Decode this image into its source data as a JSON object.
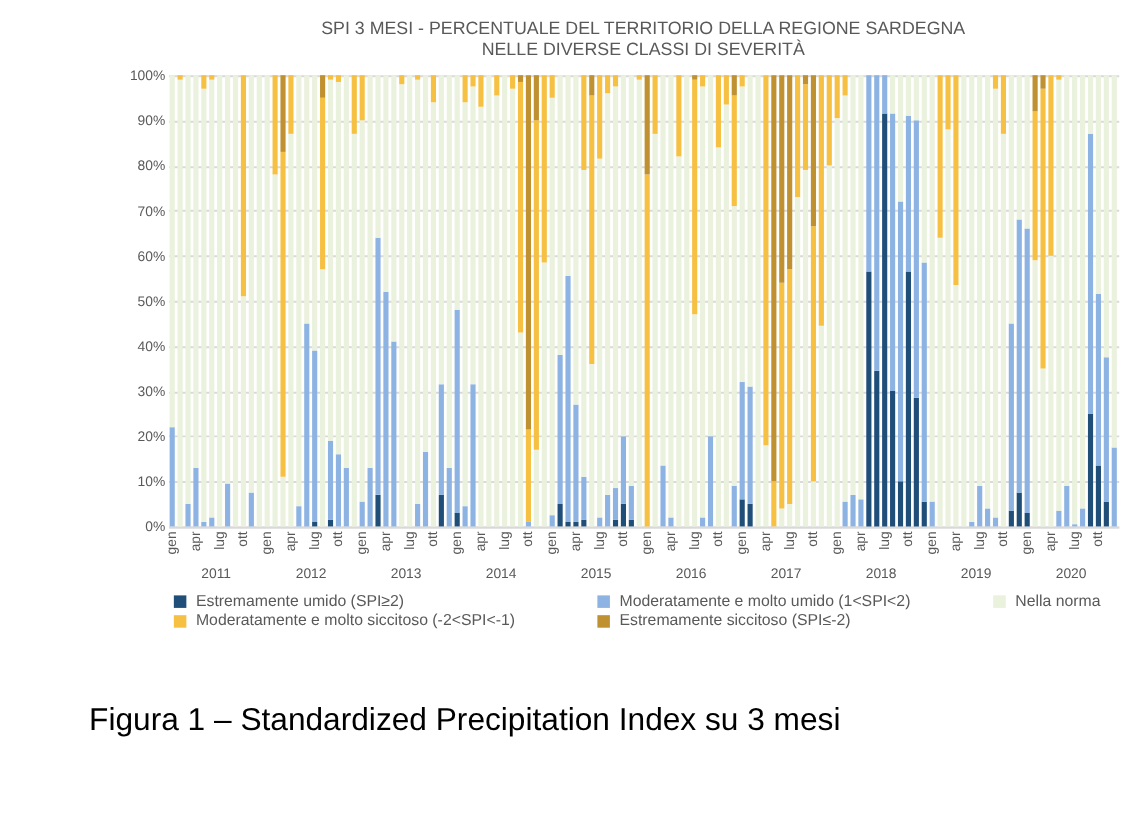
{
  "chart_data": {
    "type": "bar",
    "stacked": true,
    "title": "SPI 3 MESI - PERCENTUALE DEL TERRITORIO DELLA REGIONE SARDEGNA NELLE DIVERSE CLASSI DI SEVERITÀ",
    "categories": [
      "gen",
      null,
      null,
      "apr",
      null,
      null,
      "lug",
      null,
      null,
      "ott",
      null,
      null,
      "gen",
      null,
      null,
      "apr",
      null,
      null,
      "lug",
      null,
      null,
      "ott",
      null,
      null,
      "gen",
      null,
      null,
      "apr",
      null,
      null,
      "lug",
      null,
      null,
      "ott",
      null,
      null,
      "gen",
      null,
      null,
      "apr",
      null,
      null,
      "lug",
      null,
      null,
      "ott",
      null,
      null,
      "gen",
      null,
      null,
      "apr",
      null,
      null,
      "lug",
      null,
      null,
      "ott",
      null,
      null,
      "gen",
      null,
      null,
      "apr",
      null,
      null,
      "lug",
      null,
      null,
      "ott",
      null,
      null,
      "gen",
      null,
      null,
      "apr",
      null,
      null,
      "lug",
      null,
      null,
      "ott",
      null,
      null,
      "gen",
      null,
      null,
      "apr",
      null,
      null,
      "lug",
      null,
      null,
      "ott",
      null,
      null,
      "gen",
      null,
      null,
      "apr",
      null,
      null,
      "lug",
      null,
      null,
      "ott",
      null,
      null,
      "gen",
      null,
      null,
      "apr",
      null,
      null,
      "lug",
      null,
      null,
      "ott",
      null,
      null
    ],
    "series": [
      {
        "name": "Estremamente  umido (SPI≥2)",
        "color": "#1f4e79",
        "values": [
          0,
          0,
          0,
          0,
          0,
          0,
          0,
          0,
          0,
          0,
          0,
          0,
          0,
          0,
          0,
          0,
          0,
          0,
          1,
          0,
          1.5,
          0,
          0,
          0,
          0,
          0,
          7,
          0,
          0,
          0,
          0,
          0,
          0,
          0,
          7,
          0,
          3,
          0,
          0,
          0,
          0,
          0,
          0,
          0,
          0,
          0,
          0,
          0,
          0,
          5,
          1,
          1,
          1.5,
          0,
          0,
          0,
          1.5,
          5,
          1.5,
          0,
          0,
          0,
          0,
          0,
          0,
          0,
          0,
          0,
          0,
          0,
          0,
          0,
          6,
          5,
          0,
          0,
          0,
          0,
          0,
          0,
          0,
          0,
          0,
          0,
          0,
          0,
          0,
          0,
          56.5,
          34.5,
          91.5,
          30,
          10,
          56.5,
          28.5,
          5.5,
          0,
          0,
          0,
          0,
          0,
          0,
          0,
          0,
          0,
          0,
          3.5,
          7.5,
          3,
          0,
          0,
          0,
          0,
          0,
          0,
          0,
          25,
          13.5,
          5.5,
          0
        ]
      },
      {
        "name": "Moderatamente e molto umido (1<SPI<2)",
        "color": "#8db3e2",
        "values": [
          22,
          0,
          5,
          13,
          1,
          2,
          0,
          9.5,
          0,
          0,
          7.5,
          0,
          0,
          0,
          0,
          0,
          4.5,
          45,
          38,
          0,
          17.5,
          16,
          13,
          0,
          5.5,
          13,
          57,
          52,
          41,
          0,
          0,
          5,
          16.5,
          0,
          24.5,
          13,
          45,
          4.5,
          31.5,
          0,
          0,
          0,
          0,
          0,
          0,
          1,
          0,
          0,
          2.5,
          33,
          54.5,
          26,
          9.5,
          0,
          2,
          7,
          7,
          15,
          7.5,
          0,
          0,
          0,
          13.5,
          2,
          0,
          0,
          0,
          2,
          20,
          0,
          0,
          9,
          26,
          26,
          0,
          0,
          0,
          0,
          0,
          0,
          0,
          0,
          0,
          0,
          0,
          5.5,
          7,
          6,
          43.5,
          65.5,
          8.5,
          61.5,
          62,
          34.5,
          61.5,
          53,
          5.5,
          0,
          0,
          0,
          0,
          1,
          9,
          4,
          2,
          0,
          41.5,
          60.5,
          63,
          0,
          0,
          0,
          3.5,
          9,
          0.5,
          4,
          62,
          38,
          32,
          17.5
        ]
      },
      {
        "name": "Nella norma",
        "color": "#eaf1dd",
        "values": [
          78,
          99,
          95,
          87,
          96,
          97,
          100,
          90.5,
          100,
          51,
          92.5,
          100,
          100,
          78,
          11,
          87,
          95.5,
          55,
          61,
          57,
          80,
          82.5,
          87,
          87,
          84.5,
          87,
          36,
          48,
          59,
          98,
          100,
          94,
          83.5,
          94,
          68.5,
          87,
          52,
          89.5,
          66,
          93,
          100,
          95.5,
          100,
          97,
          43,
          0,
          17,
          58.5,
          92.5,
          62,
          44.5,
          73,
          68,
          36,
          79.5,
          89,
          89,
          80,
          91,
          99,
          0,
          87,
          86.5,
          98,
          82,
          100,
          47,
          95.5,
          80,
          84,
          93.5,
          62,
          65.5,
          69,
          100,
          18,
          0,
          4,
          5,
          73,
          79,
          10,
          44.5,
          80,
          90.5,
          90,
          93,
          94,
          0,
          0,
          0,
          8.5,
          28,
          9,
          10,
          41.5,
          94.5,
          64,
          88,
          53.5,
          100,
          99,
          91,
          96,
          95,
          87,
          55,
          32,
          34,
          59,
          35,
          60,
          95.5,
          91,
          99.5,
          96,
          13,
          48.5,
          62.5,
          82.5
        ]
      },
      {
        "name": "Moderatamente e molto siccitoso (-2<SPI<-1)",
        "color": "#f6c143",
        "values": [
          0,
          1,
          0,
          0,
          3,
          1,
          0,
          0,
          0,
          49,
          0,
          0,
          0,
          22,
          72,
          13,
          0,
          0,
          0,
          38,
          1,
          1.5,
          0,
          13,
          10,
          0,
          0,
          0,
          0,
          2,
          0,
          1,
          0,
          6,
          0,
          0,
          0,
          6,
          2.5,
          7,
          0,
          4.5,
          0,
          3,
          55.5,
          20.5,
          73,
          41.5,
          5,
          0,
          0,
          0,
          21,
          59.5,
          18.5,
          4,
          2.5,
          0,
          0,
          1,
          78,
          13,
          0,
          0,
          18,
          0,
          52,
          2.5,
          0,
          16,
          6.5,
          24.5,
          2.5,
          0,
          0,
          82,
          10,
          50,
          52,
          27,
          19,
          56.5,
          55.5,
          20,
          9.5,
          4.5,
          0,
          0,
          0,
          0,
          0,
          0,
          0,
          0,
          0,
          0,
          0,
          36,
          12,
          46.5,
          0,
          0,
          0,
          0,
          3,
          13,
          0,
          0,
          0,
          33,
          62,
          40,
          1,
          0,
          0,
          0,
          0,
          0,
          0,
          0
        ]
      },
      {
        "name": "Estremamente  siccitoso (SPI≤-2)",
        "color": "#bf9130",
        "values": [
          0,
          0,
          0,
          0,
          0,
          0,
          0,
          0,
          0,
          0,
          0,
          0,
          0,
          0,
          17,
          0,
          0,
          0,
          0,
          5,
          0,
          0,
          0,
          0,
          0,
          0,
          0,
          0,
          0,
          0,
          0,
          0,
          0,
          0,
          0,
          0,
          0,
          0,
          0,
          0,
          0,
          0,
          0,
          0,
          1.5,
          78.5,
          10,
          0,
          0,
          0,
          0,
          0,
          0,
          4.5,
          0,
          0,
          0,
          0,
          0,
          0,
          22,
          0,
          0,
          0,
          0,
          0,
          1,
          0,
          0,
          0,
          0,
          4.5,
          0,
          0,
          0,
          0,
          90,
          46,
          43,
          0,
          2,
          33.5,
          0,
          0,
          0,
          0,
          0,
          0,
          0,
          0,
          0,
          0,
          0,
          0,
          0,
          0,
          0,
          0,
          0,
          0,
          0,
          0,
          0,
          0,
          0,
          0,
          0,
          0,
          0,
          8,
          3,
          0,
          0,
          0,
          0,
          0,
          0,
          0,
          0,
          0
        ]
      }
    ],
    "ylim": [
      0,
      100
    ],
    "yticks": [
      {
        "value": 0,
        "label": "0%"
      },
      {
        "value": 10,
        "label": "10%"
      },
      {
        "value": 20,
        "label": "20%"
      },
      {
        "value": 30,
        "label": "30%"
      },
      {
        "value": 40,
        "label": "40%"
      },
      {
        "value": 50,
        "label": "50%"
      },
      {
        "value": 60,
        "label": "60%"
      },
      {
        "value": 70,
        "label": "70%"
      },
      {
        "value": 80,
        "label": "80%"
      },
      {
        "value": 90,
        "label": "90%"
      },
      {
        "value": 100,
        "label": "100%"
      }
    ],
    "grid": "y",
    "legend": "bottom",
    "annotations": [
      "2011",
      "2012",
      "2013",
      "2014",
      "2015",
      "2016",
      "2017",
      "2018",
      "2019",
      "2020",
      "Figura 1 – Standardized Precipitation Index su 3 mesi"
    ]
  }
}
